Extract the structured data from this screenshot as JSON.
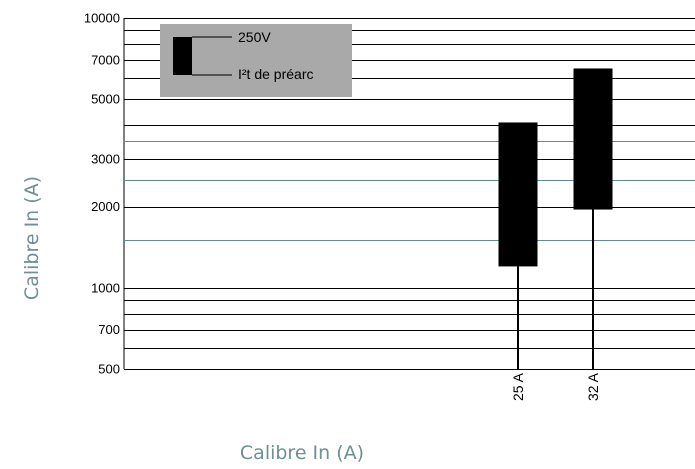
{
  "chart_data": {
    "type": "bar",
    "scale": "log",
    "xlabel": "Calibre In (A)",
    "ylabel": "Calibre In (A)",
    "ylim": [
      500,
      10000
    ],
    "yticks": [
      500,
      700,
      1000,
      2000,
      3000,
      5000,
      7000,
      10000
    ],
    "grid_lines": [
      600,
      800,
      900,
      1500,
      2500,
      3500,
      4000,
      6000,
      8000,
      9000
    ],
    "grid_lines_teal": [
      1500,
      2500,
      3500
    ],
    "categories": [
      "25 A",
      "32 A"
    ],
    "series": [
      {
        "name": "250V",
        "values": [
          1200,
          1950
        ]
      },
      {
        "name": "I²t de préarc",
        "values": [
          4100,
          6500
        ]
      }
    ],
    "stems_to": [
      500,
      500
    ],
    "legend": {
      "position": "top-left",
      "items": [
        "250V",
        "I²t de préarc"
      ]
    },
    "colors": {
      "bar": "#000000",
      "grid": "#000000",
      "teal_grid": "#5f8c90",
      "legend_bg": "#a9a9a9",
      "axis_title": "#6e8f93"
    }
  }
}
